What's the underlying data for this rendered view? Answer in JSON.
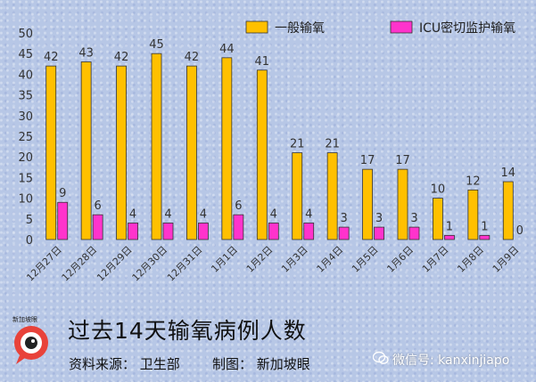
{
  "chart_data": {
    "type": "bar",
    "categories": [
      "12月27日",
      "12月28日",
      "12月29日",
      "12月30日",
      "12月31日",
      "1月1日",
      "1月2日",
      "1月3日",
      "1月4日",
      "1月5日",
      "1月6日",
      "1月7日",
      "1月8日",
      "1月9日"
    ],
    "series": [
      {
        "name": "一般输氧",
        "color": "#ffc000",
        "values": [
          42,
          43,
          42,
          45,
          42,
          44,
          41,
          21,
          21,
          17,
          17,
          10,
          12,
          14
        ]
      },
      {
        "name": "ICU密切监护输氧",
        "color": "#ff33cc",
        "values": [
          9,
          6,
          4,
          4,
          4,
          6,
          4,
          4,
          3,
          3,
          3,
          1,
          1,
          0
        ]
      }
    ],
    "ylim": [
      0,
      50
    ],
    "yticks": [
      0,
      5,
      10,
      15,
      20,
      25,
      30,
      35,
      40,
      45,
      50
    ],
    "grid": false,
    "legend_position": "top-right"
  },
  "footer": {
    "title": "过去14天输氧病例人数",
    "source": "资料来源：  卫生部",
    "made_by": "制图：  新加坡眼",
    "logo_text": "新加坡眼",
    "wechat": "微信号: kanxinjiapo"
  }
}
